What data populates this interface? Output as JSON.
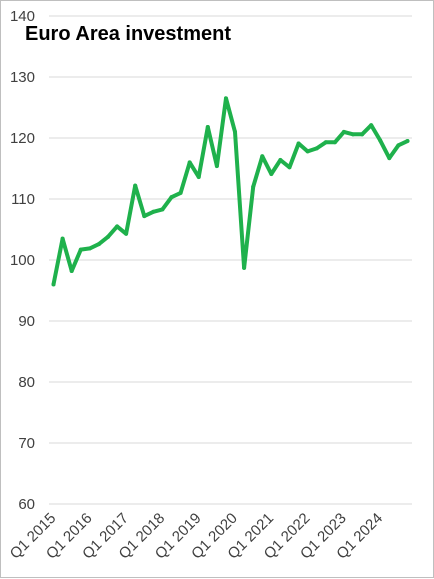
{
  "chart_data": {
    "type": "line",
    "title": "Euro Area investment",
    "xlabel": "",
    "ylabel": "",
    "ylim": [
      60,
      140
    ],
    "yticks": [
      60,
      70,
      80,
      90,
      100,
      110,
      120,
      130,
      140
    ],
    "grid": true,
    "legend": "none",
    "x_tick_labels": [
      "Q1 2015",
      "Q1 2016",
      "Q1 2017",
      "Q1 2018",
      "Q1 2019",
      "Q1 2020",
      "Q1 2021",
      "Q1 2022",
      "Q1 2023",
      "Q1 2024"
    ],
    "x": [
      "Q1 2015",
      "Q2 2015",
      "Q3 2015",
      "Q4 2015",
      "Q1 2016",
      "Q2 2016",
      "Q3 2016",
      "Q4 2016",
      "Q1 2017",
      "Q2 2017",
      "Q3 2017",
      "Q4 2017",
      "Q1 2018",
      "Q2 2018",
      "Q3 2018",
      "Q4 2018",
      "Q1 2019",
      "Q2 2019",
      "Q3 2019",
      "Q4 2019",
      "Q1 2020",
      "Q2 2020",
      "Q3 2020",
      "Q4 2020",
      "Q1 2021",
      "Q2 2021",
      "Q3 2021",
      "Q4 2021",
      "Q1 2022",
      "Q2 2022",
      "Q3 2022",
      "Q4 2022",
      "Q1 2023",
      "Q2 2023",
      "Q3 2023",
      "Q4 2023",
      "Q1 2024",
      "Q2 2024",
      "Q3 2024",
      "Q4 2024"
    ],
    "series": [
      {
        "values": [
          96.0,
          103.5,
          98.2,
          101.7,
          101.9,
          102.6,
          103.8,
          105.5,
          104.3,
          112.2,
          107.2,
          107.9,
          108.3,
          110.3,
          111.0,
          116.0,
          113.6,
          121.8,
          115.4,
          126.5,
          121.0,
          98.7,
          112.0,
          117.0,
          114.1,
          116.4,
          115.2,
          119.1,
          117.8,
          118.3,
          119.3,
          119.3,
          121.0,
          120.6,
          120.6,
          122.1,
          119.6,
          116.7,
          118.8,
          119.5
        ],
        "color": "#1fb14c"
      }
    ]
  }
}
